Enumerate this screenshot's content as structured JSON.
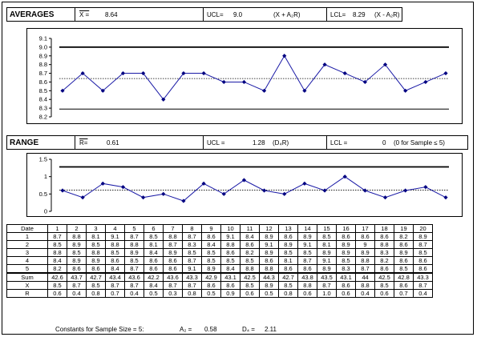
{
  "averages": {
    "title": "AVERAGES",
    "xbar_label": "X =",
    "xbar_value": "8.64",
    "ucl_label": "UCL=",
    "ucl_value": "9.0",
    "ucl_formula": "(X + A₂R)",
    "lcl_label": "LCL=",
    "lcl_value": "8.29",
    "lcl_formula": "(X - A₂R)"
  },
  "range": {
    "title": "RANGE",
    "rbar_label": "R=",
    "rbar_value": "0.61",
    "ucl_label": "UCL =",
    "ucl_value": "1.28",
    "ucl_formula": "(D₄R)",
    "lcl_label": "LCL =",
    "lcl_value": "0",
    "lcl_note": "(0 for Sample ≤ 5)"
  },
  "chart_data": [
    {
      "type": "line",
      "x": [
        1,
        2,
        3,
        4,
        5,
        6,
        7,
        8,
        9,
        10,
        11,
        12,
        13,
        14,
        15,
        16,
        17,
        18,
        19,
        20
      ],
      "series": [
        {
          "values": [
            8.5,
            8.7,
            8.5,
            8.7,
            8.7,
            8.4,
            8.7,
            8.7,
            8.6,
            8.6,
            8.5,
            8.9,
            8.5,
            8.8,
            8.7,
            8.6,
            8.8,
            8.5,
            8.6,
            8.7
          ]
        }
      ],
      "center_line": 8.64,
      "ucl": 9.0,
      "lcl": 8.29,
      "ylim": [
        8.2,
        9.1
      ],
      "yticks": [
        "9.1",
        "9.0",
        "8.9",
        "8.8",
        "8.7",
        "8.6",
        "8.5",
        "8.4",
        "8.3",
        "8.2"
      ]
    },
    {
      "type": "line",
      "x": [
        1,
        2,
        3,
        4,
        5,
        6,
        7,
        8,
        9,
        10,
        11,
        12,
        13,
        14,
        15,
        16,
        17,
        18,
        19,
        20
      ],
      "series": [
        {
          "values": [
            0.6,
            0.4,
            0.8,
            0.7,
            0.4,
            0.5,
            0.3,
            0.8,
            0.5,
            0.9,
            0.6,
            0.5,
            0.8,
            0.6,
            1.0,
            0.6,
            0.4,
            0.6,
            0.7,
            0.4
          ]
        }
      ],
      "center_line": 0.61,
      "ucl": 1.28,
      "ylim": [
        0,
        1.5
      ],
      "yticks": [
        "1.5",
        "1",
        "0.5",
        "0"
      ]
    }
  ],
  "table": {
    "date_label": "Date",
    "dates": [
      "1",
      "2",
      "3",
      "4",
      "5",
      "6",
      "7",
      "8",
      "9",
      "10",
      "11",
      "12",
      "13",
      "14",
      "15",
      "16",
      "17",
      "18",
      "19",
      "20"
    ],
    "rows": [
      {
        "label": "1",
        "values": [
          "8.7",
          "8.8",
          "8.1",
          "9.1",
          "8.7",
          "8.5",
          "8.8",
          "8.7",
          "8.6",
          "9.1",
          "8.4",
          "8.9",
          "8.6",
          "8.9",
          "8.5",
          "8.6",
          "8.6",
          "8.6",
          "8.2",
          "8.9"
        ]
      },
      {
        "label": "2",
        "values": [
          "8.5",
          "8.9",
          "8.5",
          "8.8",
          "8.8",
          "8.1",
          "8.7",
          "8.3",
          "8.4",
          "8.8",
          "8.6",
          "9.1",
          "8.9",
          "9.1",
          "8.1",
          "8.9",
          "9",
          "8.8",
          "8.6",
          "8.7"
        ]
      },
      {
        "label": "3",
        "values": [
          "8.8",
          "8.5",
          "8.8",
          "8.5",
          "8.9",
          "8.4",
          "8.9",
          "8.5",
          "8.5",
          "8.6",
          "8.2",
          "8.9",
          "8.5",
          "8.5",
          "8.9",
          "8.9",
          "8.9",
          "8.3",
          "8.9",
          "8.5"
        ]
      },
      {
        "label": "4",
        "values": [
          "8.4",
          "8.9",
          "8.9",
          "8.6",
          "8.5",
          "8.6",
          "8.6",
          "8.7",
          "8.5",
          "8.5",
          "8.5",
          "8.6",
          "8.1",
          "8.7",
          "9.1",
          "8.5",
          "8.8",
          "8.2",
          "8.6",
          "8.6"
        ]
      },
      {
        "label": "5",
        "values": [
          "8.2",
          "8.6",
          "8.6",
          "8.4",
          "8.7",
          "8.6",
          "8.6",
          "9.1",
          "8.9",
          "8.4",
          "8.8",
          "8.8",
          "8.6",
          "8.6",
          "8.9",
          "8.3",
          "8.7",
          "8.6",
          "8.5",
          "8.6"
        ]
      }
    ],
    "sum_label": "Sum",
    "sums": [
      "42.6",
      "43.7",
      "42.7",
      "43.4",
      "43.6",
      "42.2",
      "43.6",
      "43.3",
      "42.9",
      "43.1",
      "42.5",
      "44.3",
      "42.7",
      "43.8",
      "43.5",
      "43.1",
      "44",
      "42.5",
      "42.8",
      "43.3"
    ],
    "xbar_label": "X",
    "means": [
      "8.5",
      "8.7",
      "8.5",
      "8.7",
      "8.7",
      "8.4",
      "8.7",
      "8.7",
      "8.6",
      "8.6",
      "8.5",
      "8.9",
      "8.5",
      "8.8",
      "8.7",
      "8.6",
      "8.8",
      "8.5",
      "8.6",
      "8.7"
    ],
    "r_label": "R",
    "ranges": [
      "0.6",
      "0.4",
      "0.8",
      "0.7",
      "0.4",
      "0.5",
      "0.3",
      "0.8",
      "0.5",
      "0.9",
      "0.6",
      "0.5",
      "0.8",
      "0.6",
      "1.0",
      "0.6",
      "0.4",
      "0.6",
      "0.7",
      "0.4"
    ]
  },
  "footer": {
    "constants_label": "Constants for Sample Size = 5:",
    "a2_label": "A₂ =",
    "a2_value": "0.58",
    "d4_label": "D₄ =",
    "d4_value": "2.11"
  }
}
